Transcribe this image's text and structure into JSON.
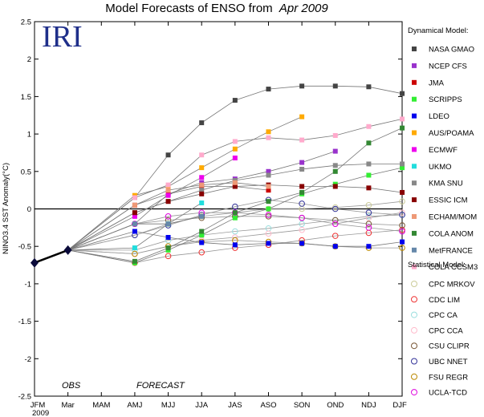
{
  "chart_data": {
    "type": "line",
    "title": "Model Forecasts of ENSO from",
    "title_date": "Apr 2009",
    "logo": "IRI",
    "ylabel": "NINO3.4 SST Anomaly(°C)",
    "ylim": [
      -2.5,
      2.5
    ],
    "yticks": [
      "-2.5",
      "-2",
      "-1.5",
      "-1",
      "-0.5",
      "0",
      "0.5",
      "1",
      "1.5",
      "2",
      "2.5"
    ],
    "x_categories": [
      "JFM",
      "Mar",
      "MAM",
      "AMJ",
      "MJJ",
      "JJA",
      "JAS",
      "ASO",
      "SON",
      "OND",
      "NDJ",
      "DJF"
    ],
    "x_year": "2009",
    "obs_label": "OBS",
    "forecast_label": "FORECAST",
    "grid": false,
    "legend_position": "right",
    "legend_dynamical_title": "Dynamical Model:",
    "legend_statistical_title": "Statistical Model:",
    "observed": {
      "x": [
        0,
        1
      ],
      "values": [
        -0.72,
        -0.55
      ],
      "color": "#000000"
    },
    "dynamical": [
      {
        "name": "NASA GMAO",
        "color": "#444444",
        "start": 3,
        "values": [
          0.15,
          0.72,
          1.15,
          1.45,
          1.6,
          1.64,
          1.64,
          1.63,
          1.54
        ]
      },
      {
        "name": "NCEP CFS",
        "color": "#9933cc",
        "start": 3,
        "values": [
          -0.2,
          0.2,
          0.35,
          0.4,
          0.5,
          0.62,
          0.77
        ]
      },
      {
        "name": "JMA",
        "color": "#cc0000",
        "start": 3,
        "values": [
          0.05,
          0.2,
          0.3,
          0.3,
          0.25
        ]
      },
      {
        "name": "SCRIPPS",
        "color": "#33ee33",
        "start": 3,
        "values": [
          -0.72,
          -0.55,
          -0.35,
          -0.12,
          0.0,
          0.2,
          0.33,
          0.45,
          0.55
        ]
      },
      {
        "name": "LDEO",
        "color": "#0000ee",
        "start": 3,
        "values": [
          -0.3,
          -0.38,
          -0.45,
          -0.48,
          -0.46,
          -0.46,
          -0.5,
          -0.5,
          -0.44
        ]
      },
      {
        "name": "AUS/POAMA",
        "color": "#ffaa00",
        "start": 3,
        "values": [
          0.18,
          0.3,
          0.55,
          0.8,
          1.03,
          1.23
        ]
      },
      {
        "name": "ECMWF",
        "color": "#ee00ee",
        "start": 3,
        "values": [
          -0.1,
          0.18,
          0.42,
          0.68
        ]
      },
      {
        "name": "UKMO",
        "color": "#22dddd",
        "start": 3,
        "values": [
          -0.52,
          -0.2,
          0.08
        ]
      },
      {
        "name": "KMA SNU",
        "color": "#888888",
        "start": 3,
        "values": [
          -0.05,
          0.1,
          0.25,
          0.38,
          0.45,
          0.53,
          0.58,
          0.6,
          0.6
        ]
      },
      {
        "name": "ESSIC ICM",
        "color": "#880000",
        "start": 3,
        "values": [
          -0.05,
          0.1,
          0.2,
          0.3,
          0.32,
          0.3,
          0.3,
          0.28,
          0.22
        ]
      },
      {
        "name": "ECHAM/MOM",
        "color": "#ee9977",
        "start": 3,
        "values": [
          0.05,
          0.25,
          0.32,
          0.35,
          0.3
        ]
      },
      {
        "name": "COLA ANOM",
        "color": "#338833",
        "start": 3,
        "values": [
          -0.7,
          -0.52,
          -0.3,
          -0.05,
          0.1,
          0.22,
          0.5,
          0.88,
          1.08
        ]
      },
      {
        "name": "MetFRANCE",
        "color": "#6688aa",
        "start": 3,
        "values": [
          -0.2,
          -0.2,
          -0.1
        ]
      },
      {
        "name": "COLA CCSM3",
        "color": "#ffaacc",
        "start": 3,
        "values": [
          0.15,
          0.32,
          0.72,
          0.9,
          0.95,
          0.92,
          0.98,
          1.1,
          1.2
        ]
      }
    ],
    "statistical": [
      {
        "name": "CPC MRKOV",
        "color": "#cccc99",
        "start": 3,
        "values": [
          -0.35,
          -0.2,
          -0.1,
          -0.05,
          0.0,
          0.0,
          0.02,
          0.05,
          0.1
        ]
      },
      {
        "name": "CDC LIM",
        "color": "#ee3333",
        "start": 3,
        "values": [
          -0.72,
          -0.63,
          -0.58,
          -0.52,
          -0.48,
          -0.42,
          -0.36,
          -0.32,
          -0.28
        ]
      },
      {
        "name": "CPC CA",
        "color": "#99dddd",
        "start": 3,
        "values": [
          -0.55,
          -0.42,
          -0.35,
          -0.3,
          -0.26,
          -0.2,
          -0.15,
          -0.1,
          -0.08
        ]
      },
      {
        "name": "CPC CCA",
        "color": "#ffbbcc",
        "start": 3,
        "values": [
          -0.6,
          -0.5,
          -0.42,
          -0.38,
          -0.33,
          -0.28,
          -0.2,
          -0.12,
          -0.05
        ]
      },
      {
        "name": "CSU CLIPR",
        "color": "#775533",
        "start": 3,
        "values": [
          -0.2,
          -0.15,
          -0.12,
          -0.1,
          -0.1,
          -0.12,
          -0.15,
          -0.2,
          -0.22
        ]
      },
      {
        "name": "UBC NNET",
        "color": "#333399",
        "start": 3,
        "values": [
          -0.35,
          -0.22,
          -0.08,
          0.03,
          0.12,
          0.07,
          0.0,
          -0.05,
          -0.08
        ]
      },
      {
        "name": "FSU REGR",
        "color": "#bb8800",
        "start": 3,
        "values": [
          -0.6,
          -0.5,
          -0.44,
          -0.42,
          -0.44,
          -0.46,
          -0.5,
          -0.52,
          -0.52
        ]
      },
      {
        "name": "UCLA-TCD",
        "color": "#dd00dd",
        "start": 3,
        "values": [
          -0.2,
          -0.1,
          -0.05,
          -0.05,
          -0.08,
          -0.12,
          -0.2,
          -0.25,
          -0.3
        ]
      }
    ]
  }
}
